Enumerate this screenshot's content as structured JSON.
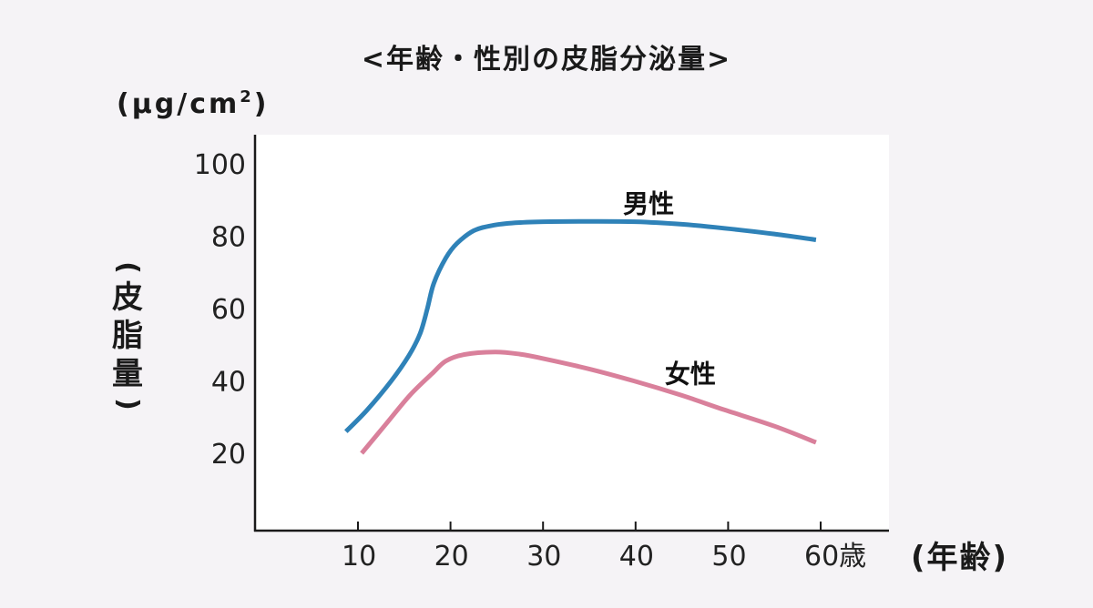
{
  "title": "<年齢・性別の皮脂分泌量>",
  "unit": {
    "prefix": "(μg/cm",
    "superscript": "2",
    "suffix": ")"
  },
  "y_axis_label": {
    "open": "(",
    "chars": [
      "皮",
      "脂",
      "量"
    ],
    "close": ")"
  },
  "x_axis_label": "(年齢)",
  "colors": {
    "background": "#f5f3f6",
    "plot_background": "#ffffff",
    "axis": "#1a1a1a",
    "male": "#2f82b8",
    "female": "#d9809b"
  },
  "chart_data": {
    "type": "line",
    "title": "<年齢・性別の皮脂分泌量>",
    "xlabel": "(年齢)",
    "ylabel": "(皮脂量)",
    "y_unit": "(μg/cm²)",
    "x_ticks": [
      10,
      20,
      30,
      40,
      50,
      60
    ],
    "x_tick_labels": [
      "10",
      "20",
      "30",
      "40",
      "50",
      "60歳"
    ],
    "y_ticks": [
      20,
      40,
      60,
      80,
      100
    ],
    "y_tick_labels": [
      "20",
      "40",
      "60",
      "80",
      "100"
    ],
    "xlim": [
      0,
      68
    ],
    "ylim": [
      0,
      108
    ],
    "grid": false,
    "legend": "inline labels",
    "series": [
      {
        "name": "男性",
        "color": "#2f82b8",
        "label_pos": {
          "x": 42,
          "y": 89
        },
        "points": [
          [
            8.7,
            26
          ],
          [
            11,
            32
          ],
          [
            13.6,
            40
          ],
          [
            15.5,
            47
          ],
          [
            16.7,
            53
          ],
          [
            17.5,
            60
          ],
          [
            18.2,
            67
          ],
          [
            19.5,
            74
          ],
          [
            20.7,
            78
          ],
          [
            22.5,
            81.5
          ],
          [
            24.6,
            83
          ],
          [
            27,
            83.7
          ],
          [
            30,
            84
          ],
          [
            35,
            84.1
          ],
          [
            40,
            84
          ],
          [
            45,
            83.3
          ],
          [
            49.6,
            82.2
          ],
          [
            55,
            80.6
          ],
          [
            59.5,
            79
          ]
        ]
      },
      {
        "name": "女性",
        "color": "#d9809b",
        "label_pos": {
          "x": 46.5,
          "y": 42
        },
        "points": [
          [
            10.4,
            20
          ],
          [
            13,
            28
          ],
          [
            15.6,
            36
          ],
          [
            18,
            42
          ],
          [
            19.5,
            45.5
          ],
          [
            21.5,
            47.3
          ],
          [
            24.8,
            48
          ],
          [
            27.5,
            47.4
          ],
          [
            30,
            46.2
          ],
          [
            35,
            43.3
          ],
          [
            39.8,
            40
          ],
          [
            45,
            36
          ],
          [
            49.6,
            32
          ],
          [
            55,
            27.5
          ],
          [
            59.5,
            23
          ]
        ]
      }
    ]
  }
}
